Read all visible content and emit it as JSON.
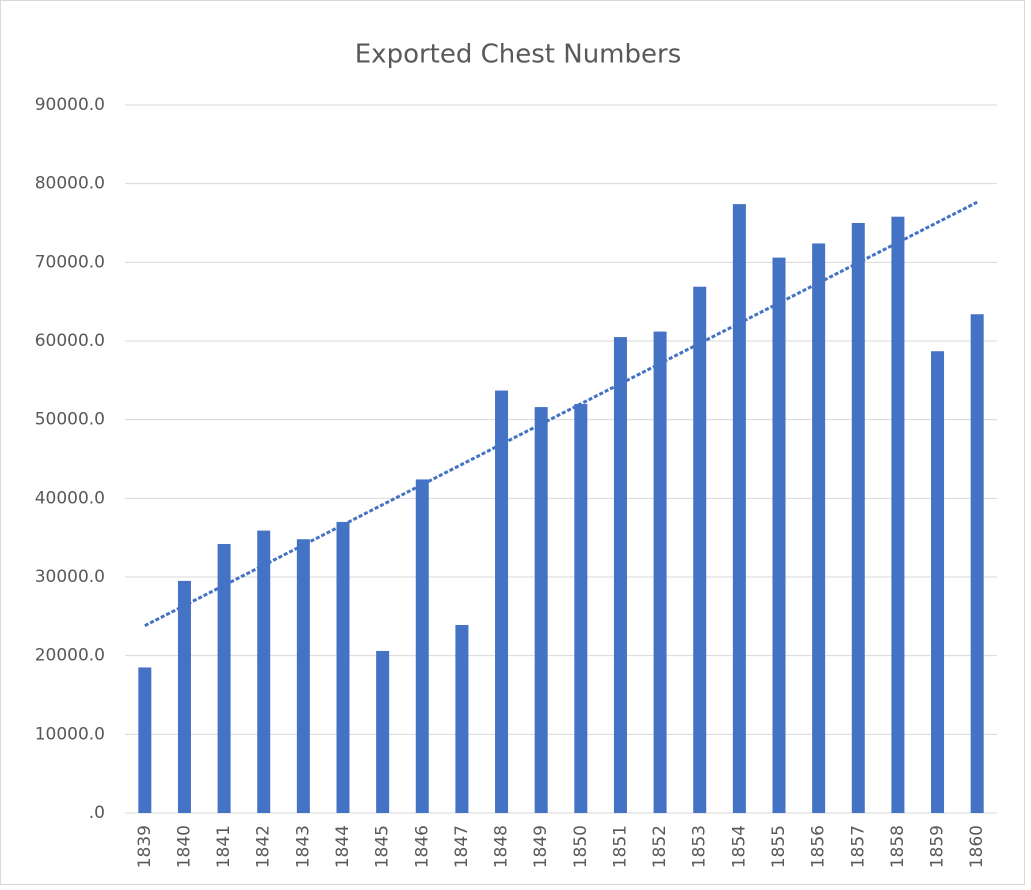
{
  "chart_data": {
    "type": "bar",
    "title": "Exported Chest Numbers",
    "categories": [
      "1839",
      "1840",
      "1841",
      "1842",
      "1843",
      "1844",
      "1845",
      "1846",
      "1847",
      "1848",
      "1849",
      "1850",
      "1851",
      "1852",
      "1853",
      "1854",
      "1855",
      "1856",
      "1857",
      "1858",
      "1859",
      "1860"
    ],
    "values": [
      18500,
      29500,
      34200,
      35900,
      34800,
      37000,
      20600,
      42400,
      23900,
      53700,
      51600,
      52000,
      60500,
      61200,
      66900,
      77400,
      70600,
      72400,
      75000,
      75800,
      58700,
      63400
    ],
    "color": "#4472c4",
    "ylim": [
      0,
      90000
    ],
    "yticks": [
      {
        "value": 0,
        "label": ".0"
      },
      {
        "value": 10000,
        "label": "10000.0"
      },
      {
        "value": 20000,
        "label": "20000.0"
      },
      {
        "value": 30000,
        "label": "30000.0"
      },
      {
        "value": 40000,
        "label": "40000.0"
      },
      {
        "value": 50000,
        "label": "50000.0"
      },
      {
        "value": 60000,
        "label": "60000.0"
      },
      {
        "value": 70000,
        "label": "70000.0"
      },
      {
        "value": 80000,
        "label": "80000.0"
      },
      {
        "value": 90000,
        "label": "90000.0"
      }
    ],
    "grid": true,
    "trendline": "linear"
  }
}
